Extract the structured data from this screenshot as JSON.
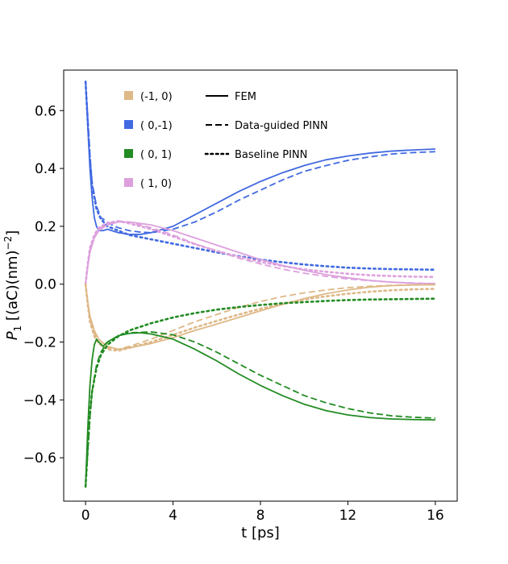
{
  "chart_data": {
    "type": "line",
    "title": "",
    "xlabel": "t [ps]",
    "ylabel_main": "P",
    "ylabel_sub": "1",
    "ylabel_rest": " [(aC)(nm)",
    "ylabel_sup": "−2",
    "ylabel_end": "]",
    "xlim": [
      -1,
      17
    ],
    "ylim": [
      -0.75,
      0.74
    ],
    "xticks": [
      0,
      4,
      8,
      12,
      16
    ],
    "xtick_labels": [
      "0",
      "4",
      "8",
      "12",
      "16"
    ],
    "yticks": [
      -0.6,
      -0.4,
      -0.2,
      0.0,
      0.2,
      0.4,
      0.6
    ],
    "ytick_labels": [
      "−0.6",
      "−0.4",
      "−0.2",
      "0.0",
      "0.2",
      "0.4",
      "0.6"
    ],
    "grid": false,
    "legend_position": "top-left",
    "legend_colors": [
      {
        "label": "(-1, 0)",
        "color": "#deb887"
      },
      {
        "label": "( 0,-1)",
        "color": "#4169e1"
      },
      {
        "label": "( 0, 1)",
        "color": "#228b22"
      },
      {
        "label": "( 1, 0)",
        "color": "#dda0dd"
      }
    ],
    "legend_styles": [
      {
        "label": "FEM",
        "dash": "solid"
      },
      {
        "label": "Data-guided PINN",
        "dash": "dashed"
      },
      {
        "label": "Baseline PINN",
        "dash": "dotted"
      }
    ],
    "series": [
      {
        "name": "(0,-1) FEM",
        "color": "#4169e1",
        "dash": "solid",
        "points": [
          [
            0,
            0.7
          ],
          [
            0.1,
            0.55
          ],
          [
            0.2,
            0.4
          ],
          [
            0.3,
            0.3
          ],
          [
            0.4,
            0.23
          ],
          [
            0.5,
            0.2
          ],
          [
            0.6,
            0.185
          ],
          [
            0.8,
            0.185
          ],
          [
            1.0,
            0.19
          ],
          [
            1.5,
            0.178
          ],
          [
            2,
            0.172
          ],
          [
            2.5,
            0.172
          ],
          [
            3,
            0.178
          ],
          [
            4,
            0.2
          ],
          [
            5,
            0.24
          ],
          [
            6,
            0.28
          ],
          [
            7,
            0.32
          ],
          [
            8,
            0.355
          ],
          [
            9,
            0.385
          ],
          [
            10,
            0.41
          ],
          [
            11,
            0.43
          ],
          [
            12,
            0.443
          ],
          [
            13,
            0.453
          ],
          [
            14,
            0.46
          ],
          [
            15,
            0.464
          ],
          [
            16,
            0.467
          ]
        ]
      },
      {
        "name": "(0,-1) Data-guided PINN",
        "color": "#4169e1",
        "dash": "dashed",
        "points": [
          [
            0,
            0.7
          ],
          [
            0.1,
            0.58
          ],
          [
            0.2,
            0.45
          ],
          [
            0.3,
            0.35
          ],
          [
            0.5,
            0.27
          ],
          [
            0.7,
            0.23
          ],
          [
            0.9,
            0.22
          ],
          [
            1.2,
            0.205
          ],
          [
            1.5,
            0.195
          ],
          [
            2,
            0.185
          ],
          [
            2.5,
            0.18
          ],
          [
            3,
            0.178
          ],
          [
            4,
            0.19
          ],
          [
            5,
            0.215
          ],
          [
            6,
            0.25
          ],
          [
            7,
            0.29
          ],
          [
            8,
            0.325
          ],
          [
            9,
            0.36
          ],
          [
            10,
            0.39
          ],
          [
            11,
            0.41
          ],
          [
            12,
            0.428
          ],
          [
            13,
            0.44
          ],
          [
            14,
            0.45
          ],
          [
            15,
            0.455
          ],
          [
            16,
            0.458
          ]
        ]
      },
      {
        "name": "(0,-1) Baseline PINN",
        "color": "#4169e1",
        "dash": "dotted",
        "points": [
          [
            0,
            0.7
          ],
          [
            0.1,
            0.56
          ],
          [
            0.2,
            0.43
          ],
          [
            0.3,
            0.34
          ],
          [
            0.5,
            0.26
          ],
          [
            0.7,
            0.225
          ],
          [
            1.0,
            0.2
          ],
          [
            1.5,
            0.185
          ],
          [
            2,
            0.17
          ],
          [
            3,
            0.155
          ],
          [
            4,
            0.14
          ],
          [
            5,
            0.125
          ],
          [
            6,
            0.11
          ],
          [
            7,
            0.097
          ],
          [
            8,
            0.085
          ],
          [
            9,
            0.076
          ],
          [
            10,
            0.068
          ],
          [
            11,
            0.062
          ],
          [
            12,
            0.057
          ],
          [
            13,
            0.054
          ],
          [
            14,
            0.052
          ],
          [
            15,
            0.051
          ],
          [
            16,
            0.05
          ]
        ]
      },
      {
        "name": "(1,0) FEM",
        "color": "#dda0dd",
        "dash": "solid",
        "points": [
          [
            0,
            0
          ],
          [
            0.1,
            0.06
          ],
          [
            0.2,
            0.11
          ],
          [
            0.4,
            0.16
          ],
          [
            0.6,
            0.185
          ],
          [
            1.0,
            0.205
          ],
          [
            1.5,
            0.215
          ],
          [
            2,
            0.215
          ],
          [
            3,
            0.205
          ],
          [
            4,
            0.185
          ],
          [
            5,
            0.16
          ],
          [
            6,
            0.135
          ],
          [
            7,
            0.11
          ],
          [
            8,
            0.085
          ],
          [
            9,
            0.065
          ],
          [
            10,
            0.048
          ],
          [
            11,
            0.033
          ],
          [
            12,
            0.022
          ],
          [
            13,
            0.013
          ],
          [
            14,
            0.007
          ],
          [
            15,
            0.003
          ],
          [
            16,
            0.002
          ]
        ]
      },
      {
        "name": "(1,0) Data-guided PINN",
        "color": "#dda0dd",
        "dash": "dashed",
        "points": [
          [
            0,
            0
          ],
          [
            0.1,
            0.065
          ],
          [
            0.2,
            0.12
          ],
          [
            0.4,
            0.165
          ],
          [
            0.6,
            0.19
          ],
          [
            1.0,
            0.21
          ],
          [
            1.5,
            0.218
          ],
          [
            2,
            0.215
          ],
          [
            3,
            0.195
          ],
          [
            4,
            0.17
          ],
          [
            5,
            0.14
          ],
          [
            6,
            0.115
          ],
          [
            7,
            0.09
          ],
          [
            8,
            0.07
          ],
          [
            9,
            0.052
          ],
          [
            10,
            0.038
          ],
          [
            11,
            0.027
          ],
          [
            12,
            0.018
          ],
          [
            13,
            0.012
          ],
          [
            14,
            0.007
          ],
          [
            15,
            0.004
          ],
          [
            16,
            0.002
          ]
        ]
      },
      {
        "name": "(1,0) Baseline PINN",
        "color": "#dda0dd",
        "dash": "dotted",
        "points": [
          [
            0,
            0
          ],
          [
            0.1,
            0.07
          ],
          [
            0.2,
            0.125
          ],
          [
            0.4,
            0.17
          ],
          [
            0.6,
            0.195
          ],
          [
            1.0,
            0.212
          ],
          [
            1.5,
            0.218
          ],
          [
            2,
            0.21
          ],
          [
            3,
            0.19
          ],
          [
            4,
            0.165
          ],
          [
            5,
            0.138
          ],
          [
            6,
            0.115
          ],
          [
            7,
            0.095
          ],
          [
            8,
            0.077
          ],
          [
            9,
            0.063
          ],
          [
            10,
            0.051
          ],
          [
            11,
            0.043
          ],
          [
            12,
            0.036
          ],
          [
            13,
            0.031
          ],
          [
            14,
            0.028
          ],
          [
            15,
            0.026
          ],
          [
            16,
            0.025
          ]
        ]
      },
      {
        "name": "(-1,0) FEM",
        "color": "#deb887",
        "dash": "solid",
        "points": [
          [
            0,
            0
          ],
          [
            0.1,
            -0.06
          ],
          [
            0.2,
            -0.11
          ],
          [
            0.4,
            -0.16
          ],
          [
            0.6,
            -0.19
          ],
          [
            1.0,
            -0.215
          ],
          [
            1.5,
            -0.225
          ],
          [
            2,
            -0.22
          ],
          [
            3,
            -0.205
          ],
          [
            4,
            -0.185
          ],
          [
            5,
            -0.16
          ],
          [
            6,
            -0.138
          ],
          [
            7,
            -0.115
          ],
          [
            8,
            -0.092
          ],
          [
            9,
            -0.07
          ],
          [
            10,
            -0.05
          ],
          [
            11,
            -0.033
          ],
          [
            12,
            -0.02
          ],
          [
            13,
            -0.01
          ],
          [
            14,
            -0.005
          ],
          [
            15,
            -0.003
          ],
          [
            16,
            -0.002
          ]
        ]
      },
      {
        "name": "(-1,0) Data-guided PINN",
        "color": "#deb887",
        "dash": "dashed",
        "points": [
          [
            0,
            0
          ],
          [
            0.1,
            -0.065
          ],
          [
            0.2,
            -0.12
          ],
          [
            0.4,
            -0.17
          ],
          [
            0.6,
            -0.2
          ],
          [
            1.0,
            -0.22
          ],
          [
            1.5,
            -0.225
          ],
          [
            2,
            -0.215
          ],
          [
            3,
            -0.19
          ],
          [
            4,
            -0.16
          ],
          [
            5,
            -0.13
          ],
          [
            6,
            -0.105
          ],
          [
            7,
            -0.08
          ],
          [
            8,
            -0.06
          ],
          [
            9,
            -0.043
          ],
          [
            10,
            -0.03
          ],
          [
            11,
            -0.02
          ],
          [
            12,
            -0.012
          ],
          [
            13,
            -0.007
          ],
          [
            14,
            -0.004
          ],
          [
            15,
            -0.002
          ],
          [
            16,
            -0.001
          ]
        ]
      },
      {
        "name": "(-1,0) Baseline PINN",
        "color": "#deb887",
        "dash": "dotted",
        "points": [
          [
            0,
            0
          ],
          [
            0.1,
            -0.07
          ],
          [
            0.2,
            -0.13
          ],
          [
            0.4,
            -0.18
          ],
          [
            0.6,
            -0.205
          ],
          [
            1.0,
            -0.225
          ],
          [
            1.5,
            -0.23
          ],
          [
            2,
            -0.22
          ],
          [
            3,
            -0.2
          ],
          [
            4,
            -0.175
          ],
          [
            5,
            -0.15
          ],
          [
            6,
            -0.127
          ],
          [
            7,
            -0.105
          ],
          [
            8,
            -0.085
          ],
          [
            9,
            -0.068
          ],
          [
            10,
            -0.053
          ],
          [
            11,
            -0.042
          ],
          [
            12,
            -0.033
          ],
          [
            13,
            -0.026
          ],
          [
            14,
            -0.021
          ],
          [
            15,
            -0.018
          ],
          [
            16,
            -0.016
          ]
        ]
      },
      {
        "name": "(0,1) FEM",
        "color": "#228b22",
        "dash": "solid",
        "points": [
          [
            0,
            -0.7
          ],
          [
            0.1,
            -0.5
          ],
          [
            0.2,
            -0.35
          ],
          [
            0.3,
            -0.26
          ],
          [
            0.4,
            -0.21
          ],
          [
            0.5,
            -0.19
          ],
          [
            0.6,
            -0.2
          ],
          [
            0.8,
            -0.215
          ],
          [
            1.0,
            -0.2
          ],
          [
            1.5,
            -0.178
          ],
          [
            2,
            -0.17
          ],
          [
            2.5,
            -0.168
          ],
          [
            3,
            -0.172
          ],
          [
            4,
            -0.19
          ],
          [
            5,
            -0.225
          ],
          [
            6,
            -0.265
          ],
          [
            7,
            -0.31
          ],
          [
            8,
            -0.35
          ],
          [
            9,
            -0.385
          ],
          [
            10,
            -0.415
          ],
          [
            11,
            -0.437
          ],
          [
            12,
            -0.452
          ],
          [
            13,
            -0.461
          ],
          [
            14,
            -0.466
          ],
          [
            15,
            -0.468
          ],
          [
            16,
            -0.469
          ]
        ]
      },
      {
        "name": "(0,1) Data-guided PINN",
        "color": "#228b22",
        "dash": "dashed",
        "points": [
          [
            0,
            -0.7
          ],
          [
            0.1,
            -0.58
          ],
          [
            0.2,
            -0.46
          ],
          [
            0.3,
            -0.37
          ],
          [
            0.5,
            -0.28
          ],
          [
            0.7,
            -0.235
          ],
          [
            1.0,
            -0.2
          ],
          [
            1.5,
            -0.178
          ],
          [
            2,
            -0.168
          ],
          [
            3,
            -0.165
          ],
          [
            4,
            -0.175
          ],
          [
            5,
            -0.2
          ],
          [
            6,
            -0.235
          ],
          [
            7,
            -0.275
          ],
          [
            8,
            -0.315
          ],
          [
            9,
            -0.35
          ],
          [
            10,
            -0.385
          ],
          [
            11,
            -0.41
          ],
          [
            12,
            -0.43
          ],
          [
            13,
            -0.445
          ],
          [
            14,
            -0.455
          ],
          [
            15,
            -0.46
          ],
          [
            16,
            -0.463
          ]
        ]
      },
      {
        "name": "(0,1) Baseline PINN",
        "color": "#228b22",
        "dash": "dotted",
        "points": [
          [
            0,
            -0.7
          ],
          [
            0.1,
            -0.57
          ],
          [
            0.2,
            -0.45
          ],
          [
            0.3,
            -0.37
          ],
          [
            0.5,
            -0.29
          ],
          [
            0.7,
            -0.245
          ],
          [
            1.0,
            -0.21
          ],
          [
            1.5,
            -0.18
          ],
          [
            2,
            -0.16
          ],
          [
            3,
            -0.135
          ],
          [
            4,
            -0.115
          ],
          [
            5,
            -0.1
          ],
          [
            6,
            -0.088
          ],
          [
            7,
            -0.079
          ],
          [
            8,
            -0.072
          ],
          [
            9,
            -0.066
          ],
          [
            10,
            -0.062
          ],
          [
            11,
            -0.058
          ],
          [
            12,
            -0.055
          ],
          [
            13,
            -0.053
          ],
          [
            14,
            -0.052
          ],
          [
            15,
            -0.051
          ],
          [
            16,
            -0.05
          ]
        ]
      }
    ]
  }
}
